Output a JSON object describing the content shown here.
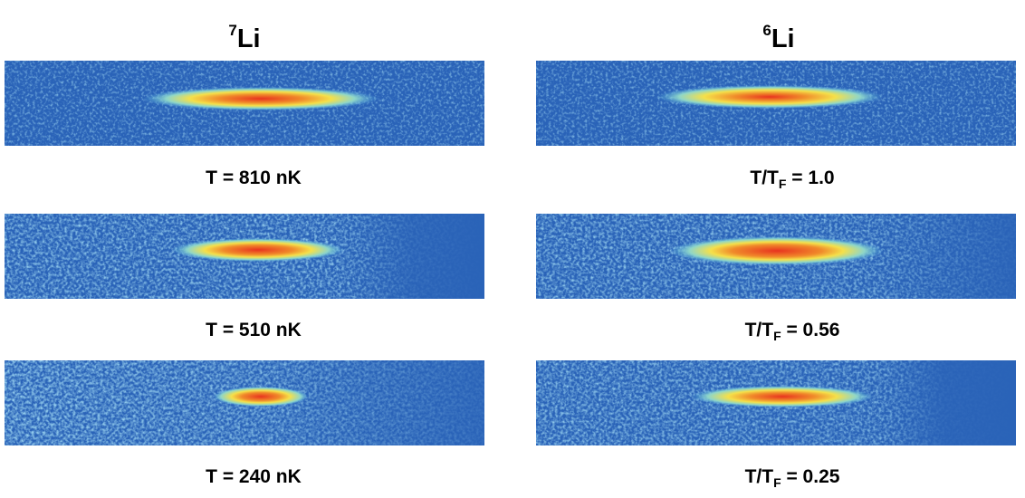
{
  "columns": [
    {
      "isotope_mass": "7",
      "element": "Li",
      "rows": [
        {
          "label": "T = 810 nK"
        },
        {
          "label": "T = 510 nK"
        },
        {
          "label": "T = 240 nK"
        }
      ]
    },
    {
      "isotope_mass": "6",
      "element": "Li",
      "rows": [
        {
          "label_prefix": "T/T",
          "label_sub": "F",
          "label_suffix": " = 1.0"
        },
        {
          "label_prefix": "T/T",
          "label_sub": "F",
          "label_suffix": " = 0.56"
        },
        {
          "label_prefix": "T/T",
          "label_sub": "F",
          "label_suffix": " = 0.25"
        }
      ]
    }
  ],
  "colors": {
    "background_blue": "#2a63b8",
    "noise_cyan": "#5fb8e8",
    "cloud_yellow": "#f5e04a",
    "cloud_orange": "#f08a2a",
    "cloud_red": "#e8331f"
  }
}
